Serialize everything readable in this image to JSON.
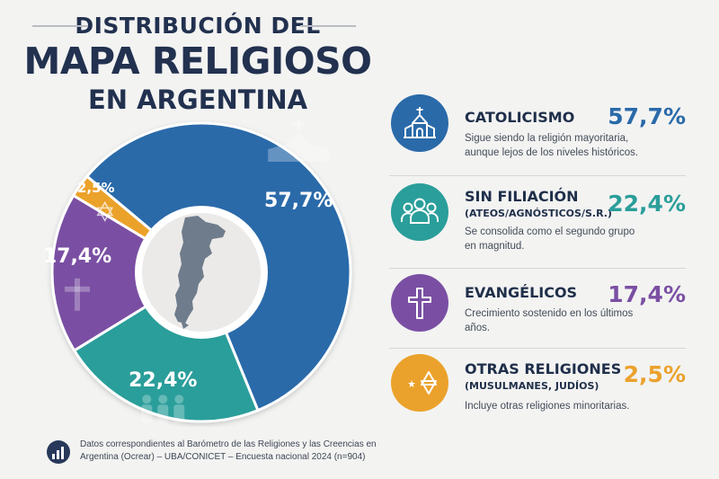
{
  "title": {
    "line1": "DISTRIBUCIÓN DEL",
    "line2": "MAPA RELIGIOSO",
    "line3": "EN ARGENTINA"
  },
  "chart_data": {
    "type": "pie",
    "donut": true,
    "categories": [
      "Catolicismo",
      "Sin filiación",
      "Evangélicos",
      "Otras religiones"
    ],
    "values": [
      57.7,
      22.4,
      17.4,
      2.5
    ],
    "value_labels": [
      "57,7%",
      "22,4%",
      "17,4%",
      "2,5%"
    ],
    "colors": [
      "#2a6aa9",
      "#2a9e9a",
      "#7a4fa3",
      "#eba22c"
    ],
    "center_icon": "argentina-map-icon",
    "slice_icons": [
      "church-icon",
      "people-icon",
      "cross-icon",
      "star-crescent-icon"
    ]
  },
  "legend": [
    {
      "name": "CATOLICISMO",
      "subtitle": "",
      "pct": "57,7%",
      "description": "Sigue siendo la religión mayoritaria, aunque lejos de los niveles históricos.",
      "color": "#2a6aa9",
      "icon": "church-icon"
    },
    {
      "name": "SIN FILIACIÓN",
      "subtitle": "(ATEOS/AGNÓSTICOS/S.R.)",
      "pct": "22,4%",
      "description": "Se consolida como el segundo grupo en magnitud.",
      "color": "#2a9e9a",
      "icon": "people-icon"
    },
    {
      "name": "EVANGÉLICOS",
      "subtitle": "",
      "pct": "17,4%",
      "description": "Crecimiento sostenido en los últimos años.",
      "color": "#7a4fa3",
      "icon": "cross-icon"
    },
    {
      "name": "OTRAS RELIGIONES",
      "subtitle": "(MUSULMANES, JUDÍOS)",
      "pct": "2,5%",
      "description": "Incluye otras religiones minoritarias.",
      "color": "#eba22c",
      "icon": "star-crescent-icon"
    }
  ],
  "footer": {
    "text": "Datos correspondientes al Barómetro de las Religiones y las Creencias en Argentina (Ocrear) – UBA/CONICET – Encuesta nacional 2024 (n=904)",
    "icon": "bar-chart-icon"
  }
}
